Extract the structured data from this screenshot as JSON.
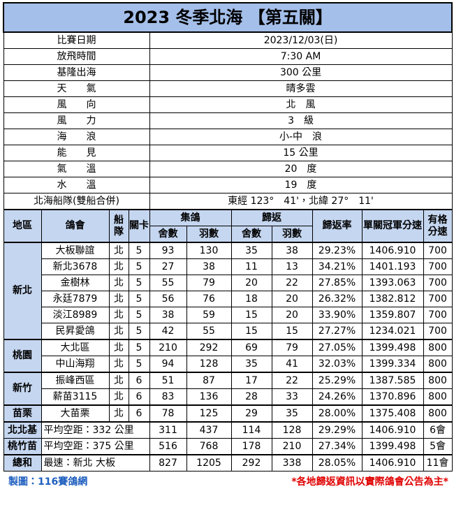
{
  "title": "2023 冬季北海 【第五關】",
  "info": [
    [
      "比賽日期",
      "2023/12/03(日)"
    ],
    [
      "放飛時間",
      "7:30 AM"
    ],
    [
      "基隆出海",
      "300 公里"
    ],
    [
      "天　　氣",
      "晴多雲"
    ],
    [
      "風　　向",
      "北　風"
    ],
    [
      "風　　力",
      "3　級"
    ],
    [
      "海　　浪",
      "小-中　浪"
    ],
    [
      "能　　見",
      "15 公里"
    ],
    [
      "氣　　溫",
      "20　度"
    ],
    [
      "水　　溫",
      "19　度"
    ],
    [
      "北海船隊(雙船合併)",
      "東經 123°　41'，北緯 27°　11'"
    ]
  ],
  "header": [
    "地區",
    "鴿會",
    "船隊",
    "關卡",
    "集鴿",
    "歸返",
    "歸返率",
    "單關冠軍分速",
    "有格分速"
  ],
  "subheader": [
    "舍數",
    "羽數",
    "舍數",
    "羽數"
  ],
  "groups": [
    {
      "region": "新北",
      "rows": [
        [
          "大板聯誼",
          "北",
          "5",
          "93",
          "130",
          "35",
          "38",
          "29.23%",
          "1406.910",
          "700"
        ],
        [
          "新北3678",
          "北",
          "5",
          "27",
          "38",
          "11",
          "13",
          "34.21%",
          "1401.193",
          "700"
        ],
        [
          "金樹林",
          "北",
          "5",
          "55",
          "79",
          "20",
          "22",
          "27.85%",
          "1393.063",
          "700"
        ],
        [
          "永廷7879",
          "北",
          "5",
          "56",
          "76",
          "18",
          "20",
          "26.32%",
          "1382.812",
          "700"
        ],
        [
          "淡江8989",
          "北",
          "5",
          "38",
          "59",
          "15",
          "20",
          "33.90%",
          "1359.807",
          "700"
        ],
        [
          "民昇愛鴿",
          "北",
          "5",
          "42",
          "55",
          "15",
          "15",
          "27.27%",
          "1234.021",
          "700"
        ]
      ]
    },
    {
      "region": "桃園",
      "rows": [
        [
          "大北區",
          "北",
          "5",
          "210",
          "292",
          "69",
          "79",
          "27.05%",
          "1399.498",
          "800"
        ],
        [
          "中山海翔",
          "北",
          "5",
          "94",
          "128",
          "35",
          "41",
          "32.03%",
          "1399.334",
          "800"
        ]
      ]
    },
    {
      "region": "新竹",
      "rows": [
        [
          "振峰西區",
          "北",
          "6",
          "51",
          "87",
          "17",
          "22",
          "25.29%",
          "1387.585",
          "800"
        ],
        [
          "薪苗3115",
          "北",
          "6",
          "83",
          "136",
          "28",
          "33",
          "24.26%",
          "1370.896",
          "800"
        ]
      ]
    },
    {
      "region": "苗栗",
      "rows": [
        [
          "大苗栗",
          "北",
          "6",
          "78",
          "125",
          "29",
          "35",
          "28.00%",
          "1375.408",
          "800"
        ]
      ]
    }
  ],
  "summary": [
    [
      "北北基",
      "平均空距：332 公里",
      "311",
      "437",
      "114",
      "128",
      "29.29%",
      "1406.910",
      "6會"
    ],
    [
      "桃竹苗",
      "平均空距：375 公里",
      "516",
      "768",
      "178",
      "210",
      "27.34%",
      "1399.498",
      "5會"
    ],
    [
      "總和",
      "最速：新北 大板",
      "827",
      "1205",
      "292",
      "338",
      "28.05%",
      "1406.910",
      "11會"
    ]
  ],
  "footer": {
    "credit": "製圖：116賽鴿網",
    "note": "*各地歸返資訊以實際鴿會公告為主*"
  }
}
